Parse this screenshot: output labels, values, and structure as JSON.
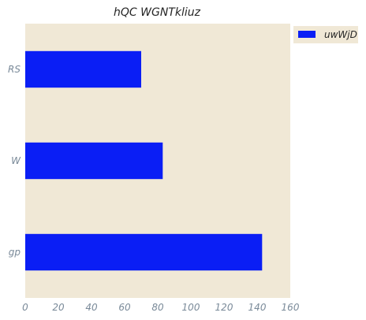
{
  "chart_data": {
    "type": "bar",
    "orientation": "horizontal",
    "title": "hQC WGNTkliuz",
    "categories": [
      "RS",
      "W",
      "gp"
    ],
    "series": [
      {
        "name": "uwWjD",
        "values": [
          70,
          83,
          143
        ],
        "color": "#0a1ef5"
      }
    ],
    "xlim": [
      0,
      160
    ],
    "xticks": [
      0,
      20,
      40,
      60,
      80,
      100,
      120,
      140,
      160
    ],
    "xlabel": "",
    "ylabel": "",
    "grid": false,
    "legend": "upper-right-outside",
    "background_color": "#f0e8d6"
  }
}
